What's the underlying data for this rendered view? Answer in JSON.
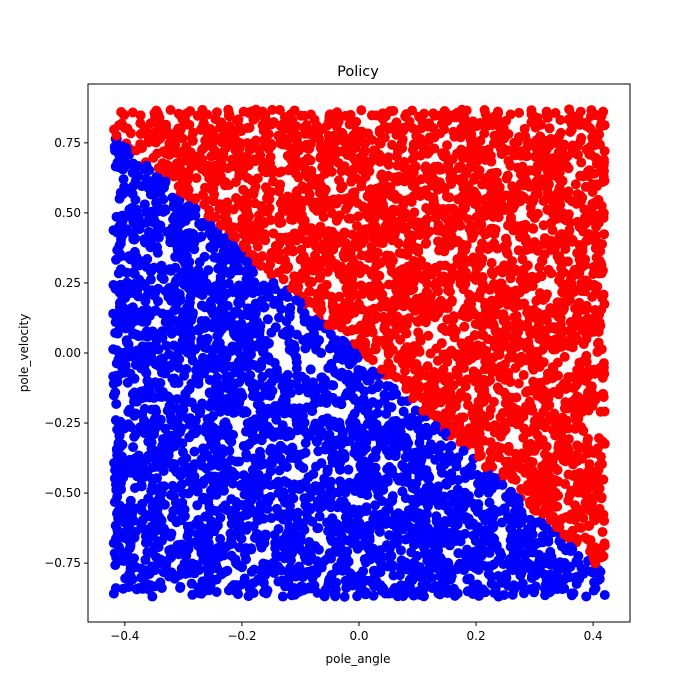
{
  "chart_data": {
    "type": "scatter",
    "title": "Policy",
    "xlabel": "pole_angle",
    "ylabel": "pole_velocity",
    "xlim": [
      -0.463,
      0.463
    ],
    "ylim": [
      -0.96,
      0.96
    ],
    "xticks": [
      -0.4,
      -0.2,
      0.0,
      0.2,
      0.4
    ],
    "xtick_labels": [
      "−0.4",
      "−0.2",
      "0.0",
      "0.2",
      "0.4"
    ],
    "yticks": [
      -0.75,
      -0.5,
      -0.25,
      0.0,
      0.25,
      0.5,
      0.75
    ],
    "ytick_labels": [
      "−0.75",
      "−0.50",
      "−0.25",
      "0.00",
      "0.25",
      "0.50",
      "0.75"
    ],
    "grid": false,
    "legend": "none",
    "sample_domain": {
      "x": [
        -0.42,
        0.42
      ],
      "y": [
        -0.87,
        0.87
      ]
    },
    "decision_boundary": {
      "description": "red above the line, blue below",
      "points": [
        [
          -0.42,
          0.78
        ],
        [
          0.4,
          -0.75
        ]
      ]
    },
    "series": [
      {
        "color": "#ff0000",
        "region": "above boundary"
      },
      {
        "color": "#0000ff",
        "region": "below boundary"
      }
    ]
  }
}
